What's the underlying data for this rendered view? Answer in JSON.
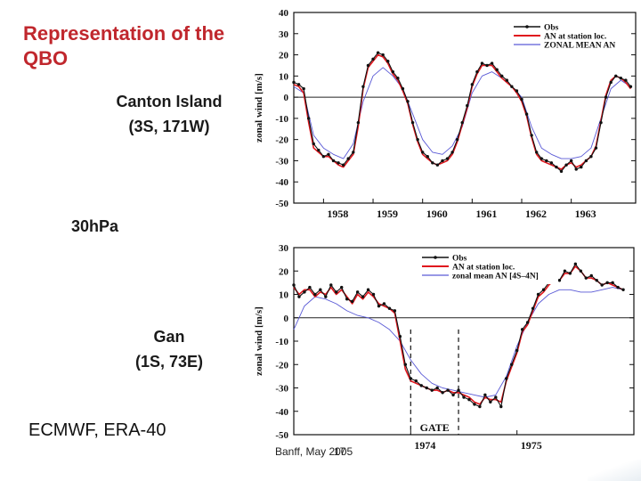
{
  "slide": {
    "title": "Representation of the QBO",
    "level": "30hPa",
    "source": "ECMWF, ERA-40",
    "footer": "Banff, May 2005",
    "page_number": "17"
  },
  "stations": [
    {
      "name": "Canton Island",
      "coords": "(3S, 171W)"
    },
    {
      "name": "Gan",
      "coords": "(1S, 73E)"
    }
  ],
  "colors": {
    "title": "#c0272d",
    "obs": "#111111",
    "an": "#e0161d",
    "zonal": "#5a5ad6"
  },
  "chart_data": [
    {
      "type": "line",
      "ylabel": "zonal wind [m/s]",
      "ylim": [
        -50,
        40
      ],
      "yticks": [
        40,
        30,
        20,
        10,
        0,
        -10,
        -20,
        -30,
        -40,
        -50
      ],
      "xlim": [
        1957.4,
        1964.3
      ],
      "xticks": [
        {
          "label": "1958",
          "x": 1958.0
        },
        {
          "label": "1959",
          "x": 1959.0
        },
        {
          "label": "1960",
          "x": 1960.0
        },
        {
          "label": "1961",
          "x": 1961.0
        },
        {
          "label": "1962",
          "x": 1962.0
        },
        {
          "label": "1963",
          "x": 1963.0
        }
      ],
      "legend": "top-right",
      "series": [
        {
          "name": "Obs",
          "style": "obs",
          "x": [
            1957.4,
            1957.5,
            1957.6,
            1957.7,
            1957.8,
            1957.9,
            1958.0,
            1958.1,
            1958.2,
            1958.3,
            1958.4,
            1958.5,
            1958.6,
            1958.7,
            1958.8,
            1958.9,
            1959.0,
            1959.1,
            1959.2,
            1959.3,
            1959.4,
            1959.5,
            1959.6,
            1959.7,
            1959.8,
            1959.9,
            1960.0,
            1960.1,
            1960.2,
            1960.3,
            1960.4,
            1960.5,
            1960.6,
            1960.7,
            1960.8,
            1960.9,
            1961.0,
            1961.1,
            1961.2,
            1961.3,
            1961.4,
            1961.5,
            1961.6,
            1961.7,
            1961.8,
            1961.9,
            1962.0,
            1962.1,
            1962.2,
            1962.3,
            1962.4,
            1962.5,
            1962.6,
            1962.7,
            1962.8,
            1962.9,
            1963.0,
            1963.1,
            1963.2,
            1963.3,
            1963.4,
            1963.5,
            1963.6,
            1963.7,
            1963.8,
            1963.9,
            1964.0,
            1964.1,
            1964.2
          ],
          "values": [
            7,
            6,
            4,
            -10,
            -22,
            -25,
            -28,
            -27,
            -30,
            -31,
            -32,
            -29,
            -26,
            -12,
            5,
            15,
            18,
            21,
            20,
            17,
            12,
            9,
            4,
            -2,
            -12,
            -20,
            -26,
            -28,
            -31,
            -32,
            -30,
            -29,
            -26,
            -20,
            -12,
            -4,
            6,
            12,
            16,
            15,
            16,
            13,
            10,
            8,
            5,
            3,
            -1,
            -8,
            -18,
            -26,
            -29,
            -30,
            -31,
            -33,
            -35,
            -32,
            -30,
            -34,
            -33,
            -30,
            -28,
            -24,
            -12,
            0,
            7,
            10,
            9,
            8,
            5
          ]
        },
        {
          "name": "AN at station loc.",
          "style": "an",
          "x": [
            1957.4,
            1957.5,
            1957.6,
            1957.7,
            1957.8,
            1957.9,
            1958.0,
            1958.1,
            1958.2,
            1958.3,
            1958.4,
            1958.5,
            1958.6,
            1958.7,
            1958.8,
            1958.9,
            1959.0,
            1959.1,
            1959.2,
            1959.3,
            1959.4,
            1959.5,
            1959.6,
            1959.7,
            1959.8,
            1959.9,
            1960.0,
            1960.1,
            1960.2,
            1960.3,
            1960.4,
            1960.5,
            1960.6,
            1960.7,
            1960.8,
            1960.9,
            1961.0,
            1961.1,
            1961.2,
            1961.3,
            1961.4,
            1961.5,
            1961.6,
            1961.7,
            1961.8,
            1961.9,
            1962.0,
            1962.1,
            1962.2,
            1962.3,
            1962.4,
            1962.5,
            1962.6,
            1962.7,
            1962.8,
            1962.9,
            1963.0,
            1963.1,
            1963.2,
            1963.3,
            1963.4,
            1963.5,
            1963.6,
            1963.7,
            1963.8,
            1963.9,
            1964.0,
            1964.1,
            1964.2
          ],
          "values": [
            6,
            5,
            2,
            -12,
            -24,
            -26,
            -28,
            -28,
            -30,
            -32,
            -33,
            -30,
            -27,
            -14,
            4,
            14,
            17,
            20,
            19,
            16,
            11,
            8,
            3,
            -3,
            -13,
            -21,
            -27,
            -29,
            -31,
            -32,
            -31,
            -30,
            -27,
            -21,
            -13,
            -5,
            5,
            11,
            15,
            15,
            15,
            12,
            9,
            7,
            5,
            2,
            -2,
            -9,
            -19,
            -27,
            -30,
            -31,
            -32,
            -33,
            -34,
            -32,
            -31,
            -33,
            -32,
            -30,
            -28,
            -23,
            -11,
            1,
            8,
            10,
            9,
            7,
            4
          ]
        },
        {
          "name": "ZONAL MEAN AN",
          "style": "zonal",
          "x": [
            1957.4,
            1957.6,
            1957.8,
            1958.0,
            1958.2,
            1958.4,
            1958.6,
            1958.8,
            1959.0,
            1959.2,
            1959.4,
            1959.6,
            1959.8,
            1960.0,
            1960.2,
            1960.4,
            1960.6,
            1960.8,
            1961.0,
            1961.2,
            1961.4,
            1961.6,
            1961.8,
            1962.0,
            1962.2,
            1962.4,
            1962.6,
            1962.8,
            1963.0,
            1963.2,
            1963.4,
            1963.6,
            1963.8,
            1964.0,
            1964.2
          ],
          "values": [
            5,
            2,
            -18,
            -24,
            -27,
            -29,
            -22,
            -2,
            10,
            14,
            10,
            4,
            -8,
            -20,
            -26,
            -27,
            -23,
            -14,
            2,
            10,
            12,
            9,
            5,
            0,
            -14,
            -24,
            -27,
            -29,
            -29,
            -28,
            -24,
            -10,
            4,
            8,
            5
          ]
        }
      ]
    },
    {
      "type": "line",
      "ylabel": "zonal wind [m/s]",
      "ylim": [
        -50,
        30
      ],
      "yticks": [
        30,
        20,
        10,
        0,
        -10,
        -20,
        -30,
        -40,
        -50
      ],
      "xlim": [
        1972.9,
        1976.1
      ],
      "xticks": [
        {
          "label": "1974",
          "x": 1974.0
        },
        {
          "label": "1975",
          "x": 1975.0
        }
      ],
      "legend": "top-right",
      "annotations": [
        {
          "label": "GATE",
          "x_start": 1974.0,
          "x_end": 1974.45
        }
      ],
      "series": [
        {
          "name": "Obs",
          "style": "obs",
          "x": [
            1972.9,
            1972.95,
            1973.0,
            1973.05,
            1973.1,
            1973.15,
            1973.2,
            1973.25,
            1973.3,
            1973.35,
            1973.4,
            1973.45,
            1973.5,
            1973.55,
            1973.6,
            1973.65,
            1973.7,
            1973.75,
            1973.8,
            1973.85,
            1973.9,
            1973.95,
            1974.0,
            1974.05,
            1974.1,
            1974.15,
            1974.2,
            1974.25,
            1974.3,
            1974.35,
            1974.4,
            1974.45,
            1974.5,
            1974.55,
            1974.6,
            1974.65,
            1974.7,
            1974.75,
            1974.8,
            1974.85,
            1974.9,
            1974.95,
            1975.0,
            1975.05,
            1975.1,
            1975.15,
            1975.2,
            1975.25,
            1975.3,
            1975.35,
            1975.4,
            1975.45,
            1975.5,
            1975.55,
            1975.6,
            1975.65,
            1975.7,
            1975.75,
            1975.8,
            1975.85,
            1975.9,
            1975.95,
            1976.0
          ],
          "values": [
            14,
            9,
            11,
            13,
            10,
            12,
            9,
            14,
            11,
            13,
            8,
            7,
            11,
            9,
            12,
            10,
            5,
            6,
            4,
            3,
            -8,
            -20,
            -26,
            -27,
            -29,
            -30,
            -31,
            -30,
            -32,
            -31,
            -33,
            -31,
            -34,
            -35,
            -37,
            -38,
            -33,
            -36,
            -34,
            -38,
            -26,
            -20,
            -14,
            -5,
            -2,
            4,
            10,
            12,
            15,
            17,
            16,
            20,
            19,
            23,
            20,
            17,
            18,
            16,
            14,
            15,
            15,
            13,
            12
          ]
        },
        {
          "name": "AN at station loc.",
          "style": "an",
          "x": [
            1972.9,
            1972.95,
            1973.0,
            1973.05,
            1973.1,
            1973.15,
            1973.2,
            1973.25,
            1973.3,
            1973.35,
            1973.4,
            1973.45,
            1973.5,
            1973.55,
            1973.6,
            1973.65,
            1973.7,
            1973.75,
            1973.8,
            1973.85,
            1973.9,
            1973.95,
            1974.0,
            1974.05,
            1974.1,
            1974.15,
            1974.2,
            1974.25,
            1974.3,
            1974.35,
            1974.4,
            1974.45,
            1974.5,
            1974.55,
            1974.6,
            1974.65,
            1974.7,
            1974.75,
            1974.8,
            1974.85,
            1974.9,
            1974.95,
            1975.0,
            1975.05,
            1975.1,
            1975.15,
            1975.2,
            1975.25,
            1975.3,
            1975.35,
            1975.4,
            1975.45,
            1975.5,
            1975.55,
            1975.6,
            1975.65,
            1975.7,
            1975.75,
            1975.8,
            1975.85,
            1975.9,
            1975.95,
            1976.0
          ],
          "values": [
            13,
            10,
            12,
            12,
            9,
            11,
            10,
            13,
            10,
            12,
            9,
            6,
            10,
            8,
            11,
            9,
            6,
            5,
            4,
            2,
            -10,
            -22,
            -27,
            -28,
            -29,
            -30,
            -31,
            -31,
            -32,
            -31,
            -32,
            -32,
            -33,
            -34,
            -36,
            -37,
            -34,
            -35,
            -35,
            -36,
            -27,
            -21,
            -15,
            -6,
            -3,
            3,
            9,
            11,
            14,
            16,
            16,
            19,
            19,
            22,
            20,
            17,
            17,
            16,
            14,
            15,
            14,
            13,
            12
          ]
        },
        {
          "name": "zonal mean AN [4S–4N]",
          "style": "zonal",
          "x": [
            1972.9,
            1973.0,
            1973.1,
            1973.2,
            1973.3,
            1973.4,
            1973.5,
            1973.6,
            1973.7,
            1973.8,
            1973.9,
            1974.0,
            1974.1,
            1974.2,
            1974.3,
            1974.4,
            1974.5,
            1974.6,
            1974.7,
            1974.8,
            1974.9,
            1975.0,
            1975.1,
            1975.2,
            1975.3,
            1975.4,
            1975.5,
            1975.6,
            1975.7,
            1975.8,
            1975.9,
            1976.0
          ],
          "values": [
            -5,
            5,
            9,
            8,
            6,
            3,
            1,
            0,
            -2,
            -5,
            -10,
            -18,
            -24,
            -28,
            -30,
            -31,
            -32,
            -33,
            -34,
            -33,
            -25,
            -12,
            -2,
            6,
            10,
            12,
            12,
            11,
            11,
            12,
            13,
            12
          ]
        }
      ]
    }
  ]
}
